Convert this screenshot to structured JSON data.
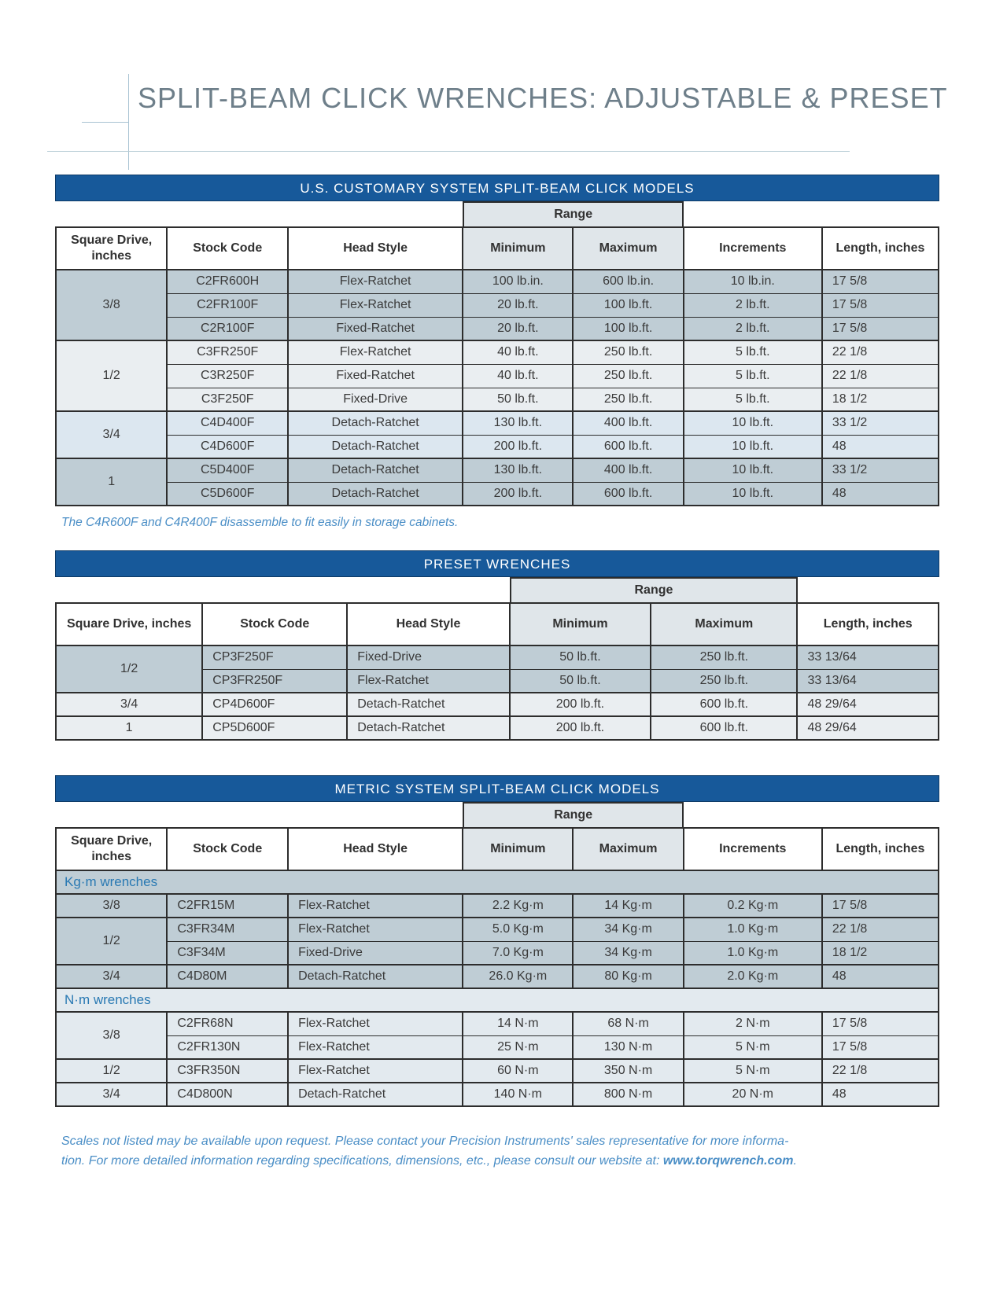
{
  "page": {
    "title": "SPLIT-BEAM CLICK WRENCHES: ADJUSTABLE & PRESET"
  },
  "colors": {
    "band_blue": "#17599a",
    "border_dark": "#2d2d2d",
    "row_gray_blue": "#bfcdd5",
    "row_light": "#eaeef1",
    "row_pale_blue": "#dce7f0",
    "row_metric_light": "#e3eaef",
    "range_header_gray": "#e0e6ea",
    "title_gray": "#6e7f8a",
    "note_blue": "#4a8ec6",
    "section_label_blue": "#2979b3"
  },
  "tables": {
    "us": {
      "title": "U.S. CUSTOMARY SYSTEM SPLIT-BEAM CLICK MODELS",
      "range_label": "Range",
      "headers": [
        "Square Drive, inches",
        "Stock Code",
        "Head Style",
        "Minimum",
        "Maximum",
        "Increments",
        "Length, inches"
      ],
      "aligns": [
        "center",
        "center",
        "center",
        "center",
        "center",
        "left"
      ],
      "groups": [
        {
          "drive": "3/8",
          "shade": "dark",
          "rows": [
            [
              "C2FR600H",
              "Flex-Ratchet",
              "100 lb.in.",
              "600 lb.in.",
              "10 lb.in.",
              "17 5/8"
            ],
            [
              "C2FR100F",
              "Flex-Ratchet",
              "20 lb.ft.",
              "100 lb.ft.",
              "2 lb.ft.",
              "17 5/8"
            ],
            [
              "C2R100F",
              "Fixed-Ratchet",
              "20 lb.ft.",
              "100 lb.ft.",
              "2 lb.ft.",
              "17 5/8"
            ]
          ]
        },
        {
          "drive": "1/2",
          "shade": "light",
          "rows": [
            [
              "C3FR250F",
              "Flex-Ratchet",
              "40 lb.ft.",
              "250 lb.ft.",
              "5 lb.ft.",
              "22 1/8"
            ],
            [
              "C3R250F",
              "Fixed-Ratchet",
              "40 lb.ft.",
              "250 lb.ft.",
              "5 lb.ft.",
              "22 1/8"
            ],
            [
              "C3F250F",
              "Fixed-Drive",
              "50 lb.ft.",
              "250 lb.ft.",
              "5 lb.ft.",
              "18 1/2"
            ]
          ]
        },
        {
          "drive": "3/4",
          "shade": "pale",
          "rows": [
            [
              "C4D400F",
              "Detach-Ratchet",
              "130 lb.ft.",
              "400 lb.ft.",
              "10 lb.ft.",
              "33 1/2"
            ],
            [
              "C4D600F",
              "Detach-Ratchet",
              "200 lb.ft.",
              "600 lb.ft.",
              "10 lb.ft.",
              "48"
            ]
          ]
        },
        {
          "drive": "1",
          "shade": "dark",
          "rows": [
            [
              "C5D400F",
              "Detach-Ratchet",
              "130 lb.ft.",
              "400 lb.ft.",
              "10 lb.ft.",
              "33 1/2"
            ],
            [
              "C5D600F",
              "Detach-Ratchet",
              "200 lb.ft.",
              "600 lb.ft.",
              "10 lb.ft.",
              "48"
            ]
          ]
        }
      ],
      "note": "The C4R600F and C4R400F disassemble to fit easily in storage cabinets."
    },
    "preset": {
      "title": "PRESET WRENCHES",
      "range_label": "Range",
      "headers": [
        "Square Drive, inches",
        "Stock Code",
        "Head Style",
        "Minimum",
        "Maximum",
        "Length, inches"
      ],
      "aligns": [
        "left",
        "left",
        "center",
        "center",
        "left"
      ],
      "groups": [
        {
          "drive": "1/2",
          "shade": "dark",
          "rows": [
            [
              "CP3F250F",
              "Fixed-Drive",
              "50 lb.ft.",
              "250 lb.ft.",
              "33 13/64"
            ],
            [
              "CP3FR250F",
              "Flex-Ratchet",
              "50 lb.ft.",
              "250 lb.ft.",
              "33 13/64"
            ]
          ]
        },
        {
          "drive": "3/4",
          "shade": "light",
          "rows": [
            [
              "CP4D600F",
              "Detach-Ratchet",
              "200 lb.ft.",
              "600 lb.ft.",
              "48 29/64"
            ]
          ]
        },
        {
          "drive": "1",
          "shade": "light",
          "rows": [
            [
              "CP5D600F",
              "Detach-Ratchet",
              "200 lb.ft.",
              "600 lb.ft.",
              "48 29/64"
            ]
          ]
        }
      ]
    },
    "metric": {
      "title": "METRIC SYSTEM SPLIT-BEAM CLICK MODELS",
      "range_label": "Range",
      "headers": [
        "Square Drive, inches",
        "Stock Code",
        "Head Style",
        "Minimum",
        "Maximum",
        "Increments",
        "Length, inches"
      ],
      "aligns": [
        "left",
        "left",
        "center",
        "center",
        "center",
        "left"
      ],
      "sections": [
        {
          "label": "Kg·m wrenches",
          "shade": "dark",
          "groups": [
            {
              "drive": "3/8",
              "rows": [
                [
                  "C2FR15M",
                  "Flex-Ratchet",
                  "2.2 Kg·m",
                  "14 Kg·m",
                  "0.2 Kg·m",
                  "17 5/8"
                ]
              ]
            },
            {
              "drive": "1/2",
              "rows": [
                [
                  "C3FR34M",
                  "Flex-Ratchet",
                  "5.0 Kg·m",
                  "34 Kg·m",
                  "1.0 Kg·m",
                  "22 1/8"
                ],
                [
                  "C3F34M",
                  "Fixed-Drive",
                  "7.0 Kg·m",
                  "34 Kg·m",
                  "1.0 Kg·m",
                  "18 1/2"
                ]
              ]
            },
            {
              "drive": "3/4",
              "rows": [
                [
                  "C4D80M",
                  "Detach-Ratchet",
                  "26.0 Kg·m",
                  "80 Kg·m",
                  "2.0 Kg·m",
                  "48"
                ]
              ]
            }
          ]
        },
        {
          "label": "N·m wrenches",
          "shade": "mlight",
          "groups": [
            {
              "drive": "3/8",
              "rows": [
                [
                  "C2FR68N",
                  "Flex-Ratchet",
                  "14 N·m",
                  "68 N·m",
                  "2 N·m",
                  "17 5/8"
                ],
                [
                  "C2FR130N",
                  "Flex-Ratchet",
                  "25 N·m",
                  "130 N·m",
                  "5 N·m",
                  "17 5/8"
                ]
              ]
            },
            {
              "drive": "1/2",
              "rows": [
                [
                  "C3FR350N",
                  "Flex-Ratchet",
                  "60 N·m",
                  "350 N·m",
                  "5 N·m",
                  "22 1/8"
                ]
              ]
            },
            {
              "drive": "3/4",
              "rows": [
                [
                  "C4D800N",
                  "Detach-Ratchet",
                  "140 N·m",
                  "800 N·m",
                  "20 N·m",
                  "48"
                ]
              ]
            }
          ]
        }
      ]
    }
  },
  "footer": {
    "line1": "Scales not listed may be available upon request. Please contact your Precision Instruments' sales representative for more informa-",
    "line2_pre": "tion. For more detailed information regarding specifications, dimensions, etc., please consult our website at: ",
    "url": "www.torqwrench.com",
    "end": "."
  }
}
